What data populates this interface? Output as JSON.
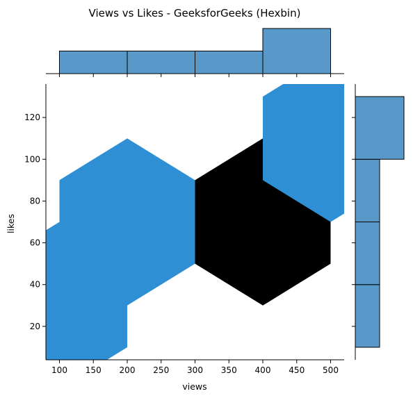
{
  "chart_data": {
    "type": "hexbin",
    "title": "Views vs Likes - GeeksforGeeks (Hexbin)",
    "xlabel": "views",
    "ylabel": "likes",
    "xlim": [
      80,
      520
    ],
    "ylim": [
      4,
      136
    ],
    "xticks": [
      100,
      150,
      200,
      250,
      300,
      350,
      400,
      450,
      500
    ],
    "yticks": [
      20,
      40,
      60,
      80,
      100,
      120
    ],
    "colors": {
      "hex_low": "#2f8fd4",
      "hex_high": "#000000",
      "bar_fill": "#5899c9",
      "bar_edge": "#000000",
      "axis": "#000000"
    },
    "hexbins": [
      {
        "x": 100,
        "y": 30,
        "count": 1
      },
      {
        "x": 200,
        "y": 70,
        "count": 1
      },
      {
        "x": 400,
        "y": 70,
        "count": 2
      },
      {
        "x": 500,
        "y": 110,
        "count": 1
      }
    ],
    "marginal_x": {
      "bins": [
        [
          100,
          200
        ],
        [
          200,
          300
        ],
        [
          300,
          400
        ],
        [
          400,
          500
        ]
      ],
      "counts": [
        1,
        1,
        1,
        2
      ]
    },
    "marginal_y": {
      "bins": [
        [
          10,
          40
        ],
        [
          40,
          70
        ],
        [
          70,
          100
        ],
        [
          100,
          130
        ]
      ],
      "counts": [
        1,
        1,
        1,
        2
      ]
    }
  }
}
